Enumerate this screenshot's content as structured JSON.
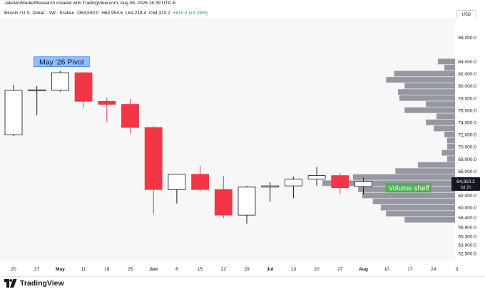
{
  "header": {
    "attribution": "JakeWuMarketResearch created with TradingView.com, Aug 06, 2026 16:39 UTC-6",
    "symbol": "Bitcoin / U.S. Dollar · 1W · Kraken",
    "open": "O63,500.0",
    "high": "H64,954.6",
    "low": "L62,218.4",
    "close": "C64,310.2",
    "change": "+810.2 (+1.28%)",
    "currency": "USD"
  },
  "footer": {
    "brand": "TradingView"
  },
  "colors": {
    "up_fill": "#ffffff",
    "up_border": "#131722",
    "down_fill": "#f23645",
    "volume_profile": "#9598a1",
    "pivot_label_bg": "#90bff9",
    "shelf_label_bg": "#4caf50",
    "price_tag_bg": "#131722"
  },
  "chart_data": {
    "type": "candlestick",
    "title": "",
    "ylim": [
      51500,
      90000
    ],
    "y_ticks": [
      52500,
      53900,
      55300,
      56800,
      58400,
      60000,
      62000,
      64000,
      66000,
      68000,
      70000,
      72000,
      74000,
      76000,
      78000,
      80000,
      82000,
      84000,
      88000
    ],
    "y_tick_labels": [
      "52,500.0",
      "53,900.0",
      "55,300.0",
      "56,800.0",
      "58,400.0",
      "60,000.0",
      "62,000.0",
      "64,000.0",
      "66,000.0",
      "68,000.0",
      "70,000.0",
      "72,000.0",
      "74,000.0",
      "76,000.0",
      "78,000.0",
      "80,000.0",
      "82,000.0",
      "84,000.0",
      "88,000.0"
    ],
    "x_ticks": [
      {
        "label": "20",
        "bold": false
      },
      {
        "label": "27",
        "bold": false
      },
      {
        "label": "May",
        "bold": true
      },
      {
        "label": "11",
        "bold": false
      },
      {
        "label": "18",
        "bold": false
      },
      {
        "label": "25",
        "bold": false
      },
      {
        "label": "Jun",
        "bold": true
      },
      {
        "label": "8",
        "bold": false
      },
      {
        "label": "15",
        "bold": false
      },
      {
        "label": "22",
        "bold": false
      },
      {
        "label": "29",
        "bold": false
      },
      {
        "label": "Jul",
        "bold": true
      },
      {
        "label": "13",
        "bold": false
      },
      {
        "label": "20",
        "bold": false
      },
      {
        "label": "27",
        "bold": false
      },
      {
        "label": "Aug",
        "bold": true
      },
      {
        "label": "10",
        "bold": false
      },
      {
        "label": "17",
        "bold": false
      },
      {
        "label": "24",
        "bold": false
      },
      {
        "label": "3",
        "bold": false
      }
    ],
    "candles": [
      {
        "o": 72000,
        "h": 80200,
        "l": 71800,
        "c": 79300
      },
      {
        "o": 79300,
        "h": 80000,
        "l": 75200,
        "c": 79300
      },
      {
        "o": 79300,
        "h": 82500,
        "l": 79100,
        "c": 82200
      },
      {
        "o": 82200,
        "h": 82300,
        "l": 76500,
        "c": 77500
      },
      {
        "o": 77500,
        "h": 78100,
        "l": 74100,
        "c": 77000
      },
      {
        "o": 77000,
        "h": 77900,
        "l": 72200,
        "c": 73200
      },
      {
        "o": 73200,
        "h": 73400,
        "l": 59000,
        "c": 63000
      },
      {
        "o": 63000,
        "h": 65500,
        "l": 60700,
        "c": 65500
      },
      {
        "o": 65500,
        "h": 66900,
        "l": 62700,
        "c": 63000
      },
      {
        "o": 63000,
        "h": 65200,
        "l": 58300,
        "c": 58800
      },
      {
        "o": 58800,
        "h": 63600,
        "l": 57400,
        "c": 63400
      },
      {
        "o": 63400,
        "h": 64200,
        "l": 61000,
        "c": 63600
      },
      {
        "o": 63600,
        "h": 65100,
        "l": 61600,
        "c": 64700
      },
      {
        "o": 64700,
        "h": 66700,
        "l": 63600,
        "c": 65300
      },
      {
        "o": 65300,
        "h": 65700,
        "l": 62300,
        "c": 63300
      },
      {
        "o": 63500,
        "h": 64954.6,
        "l": 62218.4,
        "c": 64310.2
      }
    ],
    "volume_profile": [
      {
        "price": 84000,
        "volume": 0.13
      },
      {
        "price": 83000,
        "volume": 0.08
      },
      {
        "price": 82000,
        "volume": 0.46
      },
      {
        "price": 81000,
        "volume": 0.52
      },
      {
        "price": 80000,
        "volume": 0.38
      },
      {
        "price": 79000,
        "volume": 0.43
      },
      {
        "price": 78000,
        "volume": 0.42
      },
      {
        "price": 77000,
        "volume": 0.22
      },
      {
        "price": 76000,
        "volume": 0.38
      },
      {
        "price": 75000,
        "volume": 0.14
      },
      {
        "price": 74000,
        "volume": 0.22
      },
      {
        "price": 73000,
        "volume": 0.16
      },
      {
        "price": 72000,
        "volume": 0.08
      },
      {
        "price": 71000,
        "volume": 0.06
      },
      {
        "price": 70000,
        "volume": 0.06
      },
      {
        "price": 69000,
        "volume": 0.1
      },
      {
        "price": 68000,
        "volume": 0.06
      },
      {
        "price": 67000,
        "volume": 0.28
      },
      {
        "price": 66000,
        "volume": 0.45
      },
      {
        "price": 65000,
        "volume": 0.77
      },
      {
        "price": 64000,
        "volume": 1.0
      },
      {
        "price": 63000,
        "volume": 0.73
      },
      {
        "price": 62000,
        "volume": 0.7
      },
      {
        "price": 61000,
        "volume": 0.62
      },
      {
        "price": 60000,
        "volume": 0.56
      },
      {
        "price": 59000,
        "volume": 0.52
      },
      {
        "price": 58000,
        "volume": 0.38
      }
    ],
    "annotations": [
      {
        "text": "May '26 Pivot",
        "anchor_candle": 2,
        "price": 84000,
        "style": "pivot"
      },
      {
        "text": "Volume shelf",
        "anchor_candle": 16,
        "price": 63300,
        "style": "shelf"
      }
    ],
    "last_price": {
      "value": "64,310.2",
      "countdown": "3d 2h"
    }
  }
}
